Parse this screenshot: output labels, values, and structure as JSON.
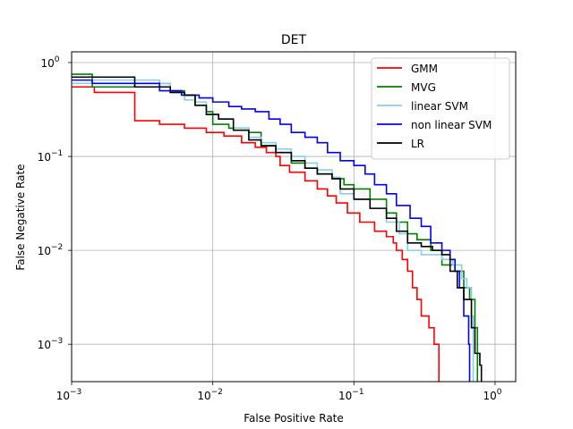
{
  "chart_data": {
    "type": "line",
    "title": "DET",
    "xlabel": "False Positive Rate",
    "ylabel": "False Negative Rate",
    "xscale": "log",
    "yscale": "log",
    "xlim": [
      0.001,
      1.4
    ],
    "ylim": [
      0.0004,
      1.3
    ],
    "grid": true,
    "legend_position": "top-right",
    "x_ticks": [
      {
        "value": 0.001,
        "base": "10",
        "exp": "−3"
      },
      {
        "value": 0.01,
        "base": "10",
        "exp": "−2"
      },
      {
        "value": 0.1,
        "base": "10",
        "exp": "−1"
      },
      {
        "value": 1,
        "base": "10",
        "exp": "0"
      }
    ],
    "y_ticks": [
      {
        "value": 0.001,
        "base": "10",
        "exp": "−3"
      },
      {
        "value": 0.01,
        "base": "10",
        "exp": "−2"
      },
      {
        "value": 0.1,
        "base": "10",
        "exp": "−1"
      },
      {
        "value": 1,
        "base": "10",
        "exp": "0"
      }
    ],
    "series": [
      {
        "name": "GMM",
        "color": "#ff0000",
        "points": [
          [
            0.001,
            0.55
          ],
          [
            0.00145,
            0.48
          ],
          [
            0.0028,
            0.48
          ],
          [
            0.0028,
            0.24
          ],
          [
            0.0042,
            0.22
          ],
          [
            0.0063,
            0.2
          ],
          [
            0.009,
            0.18
          ],
          [
            0.012,
            0.165
          ],
          [
            0.016,
            0.14
          ],
          [
            0.02,
            0.125
          ],
          [
            0.024,
            0.11
          ],
          [
            0.028,
            0.1
          ],
          [
            0.03,
            0.08
          ],
          [
            0.035,
            0.068
          ],
          [
            0.045,
            0.055
          ],
          [
            0.055,
            0.045
          ],
          [
            0.065,
            0.038
          ],
          [
            0.075,
            0.032
          ],
          [
            0.09,
            0.025
          ],
          [
            0.11,
            0.02
          ],
          [
            0.14,
            0.016
          ],
          [
            0.17,
            0.014
          ],
          [
            0.19,
            0.012
          ],
          [
            0.2,
            0.01
          ],
          [
            0.22,
            0.008
          ],
          [
            0.24,
            0.006
          ],
          [
            0.26,
            0.004
          ],
          [
            0.28,
            0.003
          ],
          [
            0.3,
            0.002
          ],
          [
            0.34,
            0.0015
          ],
          [
            0.37,
            0.001
          ],
          [
            0.4,
            0.0006
          ],
          [
            0.4,
            0.0004
          ]
        ]
      },
      {
        "name": "MVG",
        "color": "#008000",
        "points": [
          [
            0.001,
            0.75
          ],
          [
            0.0014,
            0.55
          ],
          [
            0.0028,
            0.55
          ],
          [
            0.0028,
            0.6
          ],
          [
            0.0042,
            0.6
          ],
          [
            0.005,
            0.5
          ],
          [
            0.0063,
            0.45
          ],
          [
            0.0075,
            0.35
          ],
          [
            0.009,
            0.3
          ],
          [
            0.01,
            0.22
          ],
          [
            0.013,
            0.2
          ],
          [
            0.018,
            0.18
          ],
          [
            0.022,
            0.13
          ],
          [
            0.028,
            0.11
          ],
          [
            0.036,
            0.085
          ],
          [
            0.045,
            0.075
          ],
          [
            0.055,
            0.065
          ],
          [
            0.07,
            0.058
          ],
          [
            0.085,
            0.05
          ],
          [
            0.1,
            0.045
          ],
          [
            0.13,
            0.035
          ],
          [
            0.17,
            0.025
          ],
          [
            0.2,
            0.02
          ],
          [
            0.24,
            0.015
          ],
          [
            0.28,
            0.013
          ],
          [
            0.35,
            0.01
          ],
          [
            0.42,
            0.007
          ],
          [
            0.52,
            0.006
          ],
          [
            0.6,
            0.004
          ],
          [
            0.66,
            0.003
          ],
          [
            0.72,
            0.0015
          ],
          [
            0.75,
            0.0006
          ],
          [
            0.75,
            0.0004
          ]
        ]
      },
      {
        "name": "linear SVM",
        "color": "#87ceeb",
        "points": [
          [
            0.001,
            0.6
          ],
          [
            0.0014,
            0.65
          ],
          [
            0.0028,
            0.65
          ],
          [
            0.0042,
            0.6
          ],
          [
            0.005,
            0.48
          ],
          [
            0.0063,
            0.4
          ],
          [
            0.0075,
            0.38
          ],
          [
            0.009,
            0.28
          ],
          [
            0.011,
            0.25
          ],
          [
            0.014,
            0.2
          ],
          [
            0.018,
            0.16
          ],
          [
            0.022,
            0.14
          ],
          [
            0.028,
            0.12
          ],
          [
            0.036,
            0.1
          ],
          [
            0.045,
            0.085
          ],
          [
            0.055,
            0.072
          ],
          [
            0.07,
            0.06
          ],
          [
            0.08,
            0.04
          ],
          [
            0.1,
            0.035
          ],
          [
            0.13,
            0.028
          ],
          [
            0.17,
            0.02
          ],
          [
            0.21,
            0.015
          ],
          [
            0.24,
            0.01
          ],
          [
            0.3,
            0.009
          ],
          [
            0.36,
            0.009
          ],
          [
            0.42,
            0.008
          ],
          [
            0.5,
            0.007
          ],
          [
            0.58,
            0.005
          ],
          [
            0.63,
            0.004
          ],
          [
            0.68,
            0.002
          ],
          [
            0.7,
            0.001
          ],
          [
            0.7,
            0.0004
          ]
        ]
      },
      {
        "name": "non linear SVM",
        "color": "#0000ff",
        "points": [
          [
            0.001,
            0.65
          ],
          [
            0.0014,
            0.6
          ],
          [
            0.0028,
            0.6
          ],
          [
            0.0042,
            0.5
          ],
          [
            0.006,
            0.45
          ],
          [
            0.008,
            0.42
          ],
          [
            0.01,
            0.38
          ],
          [
            0.013,
            0.34
          ],
          [
            0.016,
            0.32
          ],
          [
            0.02,
            0.3
          ],
          [
            0.025,
            0.25
          ],
          [
            0.03,
            0.22
          ],
          [
            0.036,
            0.18
          ],
          [
            0.045,
            0.16
          ],
          [
            0.055,
            0.14
          ],
          [
            0.065,
            0.11
          ],
          [
            0.08,
            0.09
          ],
          [
            0.1,
            0.08
          ],
          [
            0.12,
            0.065
          ],
          [
            0.14,
            0.05
          ],
          [
            0.17,
            0.04
          ],
          [
            0.2,
            0.03
          ],
          [
            0.25,
            0.022
          ],
          [
            0.3,
            0.018
          ],
          [
            0.35,
            0.012
          ],
          [
            0.42,
            0.01
          ],
          [
            0.48,
            0.008
          ],
          [
            0.52,
            0.006
          ],
          [
            0.56,
            0.004
          ],
          [
            0.6,
            0.002
          ],
          [
            0.65,
            0.001
          ],
          [
            0.66,
            0.0004
          ]
        ]
      },
      {
        "name": "LR",
        "color": "#000000",
        "points": [
          [
            0.001,
            0.7
          ],
          [
            0.0014,
            0.7
          ],
          [
            0.0028,
            0.55
          ],
          [
            0.0042,
            0.55
          ],
          [
            0.005,
            0.48
          ],
          [
            0.0063,
            0.45
          ],
          [
            0.0075,
            0.35
          ],
          [
            0.009,
            0.28
          ],
          [
            0.011,
            0.25
          ],
          [
            0.014,
            0.19
          ],
          [
            0.018,
            0.15
          ],
          [
            0.022,
            0.13
          ],
          [
            0.028,
            0.11
          ],
          [
            0.036,
            0.09
          ],
          [
            0.045,
            0.075
          ],
          [
            0.055,
            0.065
          ],
          [
            0.07,
            0.058
          ],
          [
            0.08,
            0.045
          ],
          [
            0.1,
            0.035
          ],
          [
            0.13,
            0.028
          ],
          [
            0.17,
            0.022
          ],
          [
            0.2,
            0.016
          ],
          [
            0.24,
            0.012
          ],
          [
            0.3,
            0.011
          ],
          [
            0.36,
            0.01
          ],
          [
            0.42,
            0.009
          ],
          [
            0.48,
            0.006
          ],
          [
            0.54,
            0.004
          ],
          [
            0.6,
            0.003
          ],
          [
            0.68,
            0.0015
          ],
          [
            0.72,
            0.0008
          ],
          [
            0.78,
            0.0006
          ],
          [
            0.8,
            0.0004
          ]
        ]
      }
    ]
  }
}
